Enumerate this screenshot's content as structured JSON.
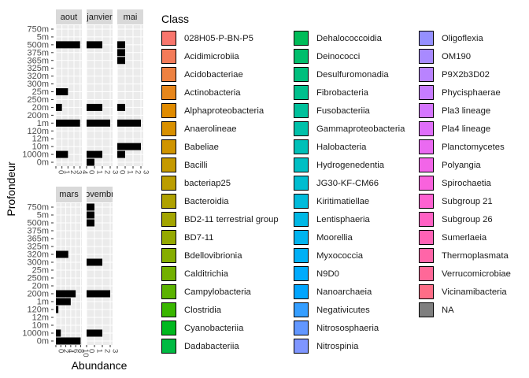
{
  "chart_data": {
    "type": "bar",
    "orientation": "horizontal",
    "facet_by": "month",
    "ylabel": "Profondeur",
    "xlabel": "Abundance",
    "depth_levels": [
      "750m",
      "5m",
      "500m",
      "375m",
      "365m",
      "325m",
      "320m",
      "300m",
      "25m",
      "250m",
      "20m",
      "200m",
      "1m",
      "120m",
      "12m",
      "10m",
      "1000m",
      "0m"
    ],
    "facets": [
      {
        "name": "aout",
        "x_ticks": [
          "0",
          "1",
          "2",
          "3",
          "4"
        ],
        "xlim": [
          0,
          4.3
        ],
        "bars": [
          {
            "depth": "500m",
            "value": 4
          },
          {
            "depth": "25m",
            "value": 2
          },
          {
            "depth": "20m",
            "value": 1
          },
          {
            "depth": "1m",
            "value": 4
          },
          {
            "depth": "1000m",
            "value": 2
          }
        ]
      },
      {
        "name": "janvier",
        "x_ticks": [
          "0",
          "1",
          "2",
          "3"
        ],
        "xlim": [
          0,
          3.3
        ],
        "bars": [
          {
            "depth": "500m",
            "value": 2
          },
          {
            "depth": "20m",
            "value": 2
          },
          {
            "depth": "1m",
            "value": 3
          },
          {
            "depth": "1000m",
            "value": 2
          },
          {
            "depth": "0m",
            "value": 1
          }
        ]
      },
      {
        "name": "mai",
        "x_ticks": [
          "0",
          "1",
          "2",
          "3"
        ],
        "xlim": [
          0,
          3.3
        ],
        "bars": [
          {
            "depth": "500m",
            "value": 1
          },
          {
            "depth": "375m",
            "value": 1
          },
          {
            "depth": "365m",
            "value": 1
          },
          {
            "depth": "20m",
            "value": 1
          },
          {
            "depth": "1m",
            "value": 3
          },
          {
            "depth": "10m",
            "value": 3
          },
          {
            "depth": "1000m",
            "value": 1
          }
        ]
      },
      {
        "name": "mars",
        "x_ticks": [
          "0",
          "2",
          "4",
          "6",
          "8",
          "10"
        ],
        "xlim": [
          0,
          10.5
        ],
        "bars": [
          {
            "depth": "320m",
            "value": 5
          },
          {
            "depth": "200m",
            "value": 8
          },
          {
            "depth": "1m",
            "value": 6
          },
          {
            "depth": "120m",
            "value": 1
          },
          {
            "depth": "1000m",
            "value": 2
          },
          {
            "depth": "0m",
            "value": 10
          }
        ]
      },
      {
        "name": "novembre",
        "x_ticks": [
          "0",
          "1",
          "2",
          "3"
        ],
        "xlim": [
          0,
          3.3
        ],
        "bars": [
          {
            "depth": "750m",
            "value": 1
          },
          {
            "depth": "5m",
            "value": 1
          },
          {
            "depth": "500m",
            "value": 1
          },
          {
            "depth": "300m",
            "value": 2
          },
          {
            "depth": "200m",
            "value": 3
          },
          {
            "depth": "1000m",
            "value": 2
          }
        ]
      }
    ],
    "bar_color": "#000000",
    "panel_background": "#ebebeb",
    "strip_background": "#d9d9d9",
    "legend": {
      "title": "Class",
      "placement": "right",
      "columns": [
        [
          {
            "label": "028H05-P-BN-P5",
            "color": "#F8766D"
          },
          {
            "label": "Acidimicrobiia",
            "color": "#F37B59"
          },
          {
            "label": "Acidobacteriae",
            "color": "#ED8141"
          },
          {
            "label": "Actinobacteria",
            "color": "#E7861B"
          },
          {
            "label": "Alphaproteobacteria",
            "color": "#E08B00"
          },
          {
            "label": "Anaerolineae",
            "color": "#D89000"
          },
          {
            "label": "Babeliae",
            "color": "#CF9400"
          },
          {
            "label": "Bacilli",
            "color": "#C59900"
          },
          {
            "label": "bacteriap25",
            "color": "#BB9D00"
          },
          {
            "label": "Bacteroidia",
            "color": "#AFA100"
          },
          {
            "label": "BD2-11 terrestrial group",
            "color": "#A3A500"
          },
          {
            "label": "BD7-11",
            "color": "#95A900"
          },
          {
            "label": "Bdellovibrionia",
            "color": "#85AD00"
          },
          {
            "label": "Calditrichia",
            "color": "#72B000"
          },
          {
            "label": "Campylobacteria",
            "color": "#5BB300"
          },
          {
            "label": "Clostridia",
            "color": "#39B600"
          },
          {
            "label": "Cyanobacteriia",
            "color": "#00B81F"
          },
          {
            "label": "Dadabacteriia",
            "color": "#00BA42"
          }
        ],
        [
          {
            "label": "Dehalococcoidia",
            "color": "#00BC59"
          },
          {
            "label": "Deinococci",
            "color": "#00BE6C"
          },
          {
            "label": "Desulfuromonadia",
            "color": "#00BF7D"
          },
          {
            "label": "Fibrobacteria",
            "color": "#00C08D"
          },
          {
            "label": "Fusobacteriia",
            "color": "#00C19C"
          },
          {
            "label": "Gammaproteobacteria",
            "color": "#00C1AA"
          },
          {
            "label": "Halobacteria",
            "color": "#00C0B8"
          },
          {
            "label": "Hydrogenedentia",
            "color": "#00BFC4"
          },
          {
            "label": "JG30-KF-CM66",
            "color": "#00BDD0"
          },
          {
            "label": "Kiritimatiellae",
            "color": "#00BBDB"
          },
          {
            "label": "Lentisphaeria",
            "color": "#00B8E5"
          },
          {
            "label": "Moorellia",
            "color": "#00B4EF"
          },
          {
            "label": "Myxococcia",
            "color": "#00B0F6"
          },
          {
            "label": "N9D0",
            "color": "#00ABFD"
          },
          {
            "label": "Nanoarchaeia",
            "color": "#00A5FF"
          },
          {
            "label": "Negativicutes",
            "color": "#359EFF"
          },
          {
            "label": "Nitrososphaeria",
            "color": "#6297FF"
          },
          {
            "label": "Nitrospinia",
            "color": "#7F96FF"
          }
        ],
        [
          {
            "label": "Oligoflexia",
            "color": "#9590FF"
          },
          {
            "label": "OM190",
            "color": "#A88AFF"
          },
          {
            "label": "P9X2b3D02",
            "color": "#B983FF"
          },
          {
            "label": "Phycisphaerae",
            "color": "#C77CFF"
          },
          {
            "label": "Pla3 lineage",
            "color": "#D575FE"
          },
          {
            "label": "Pla4 lineage",
            "color": "#E06FF9"
          },
          {
            "label": "Planctomycetes",
            "color": "#EA6AF1"
          },
          {
            "label": "Polyangia",
            "color": "#F265E8"
          },
          {
            "label": "Spirochaetia",
            "color": "#F962DD"
          },
          {
            "label": "Subgroup 21",
            "color": "#FD61D1"
          },
          {
            "label": "Subgroup 26",
            "color": "#FF61C4"
          },
          {
            "label": "Sumerlaeia",
            "color": "#FF62B6"
          },
          {
            "label": "Thermoplasmata",
            "color": "#FF65A8"
          },
          {
            "label": "Verrucomicrobiae",
            "color": "#FF6898"
          },
          {
            "label": "Vicinamibacteria",
            "color": "#FE6D87"
          },
          {
            "label": "NA",
            "color": "#7F7F7F"
          }
        ]
      ]
    }
  }
}
